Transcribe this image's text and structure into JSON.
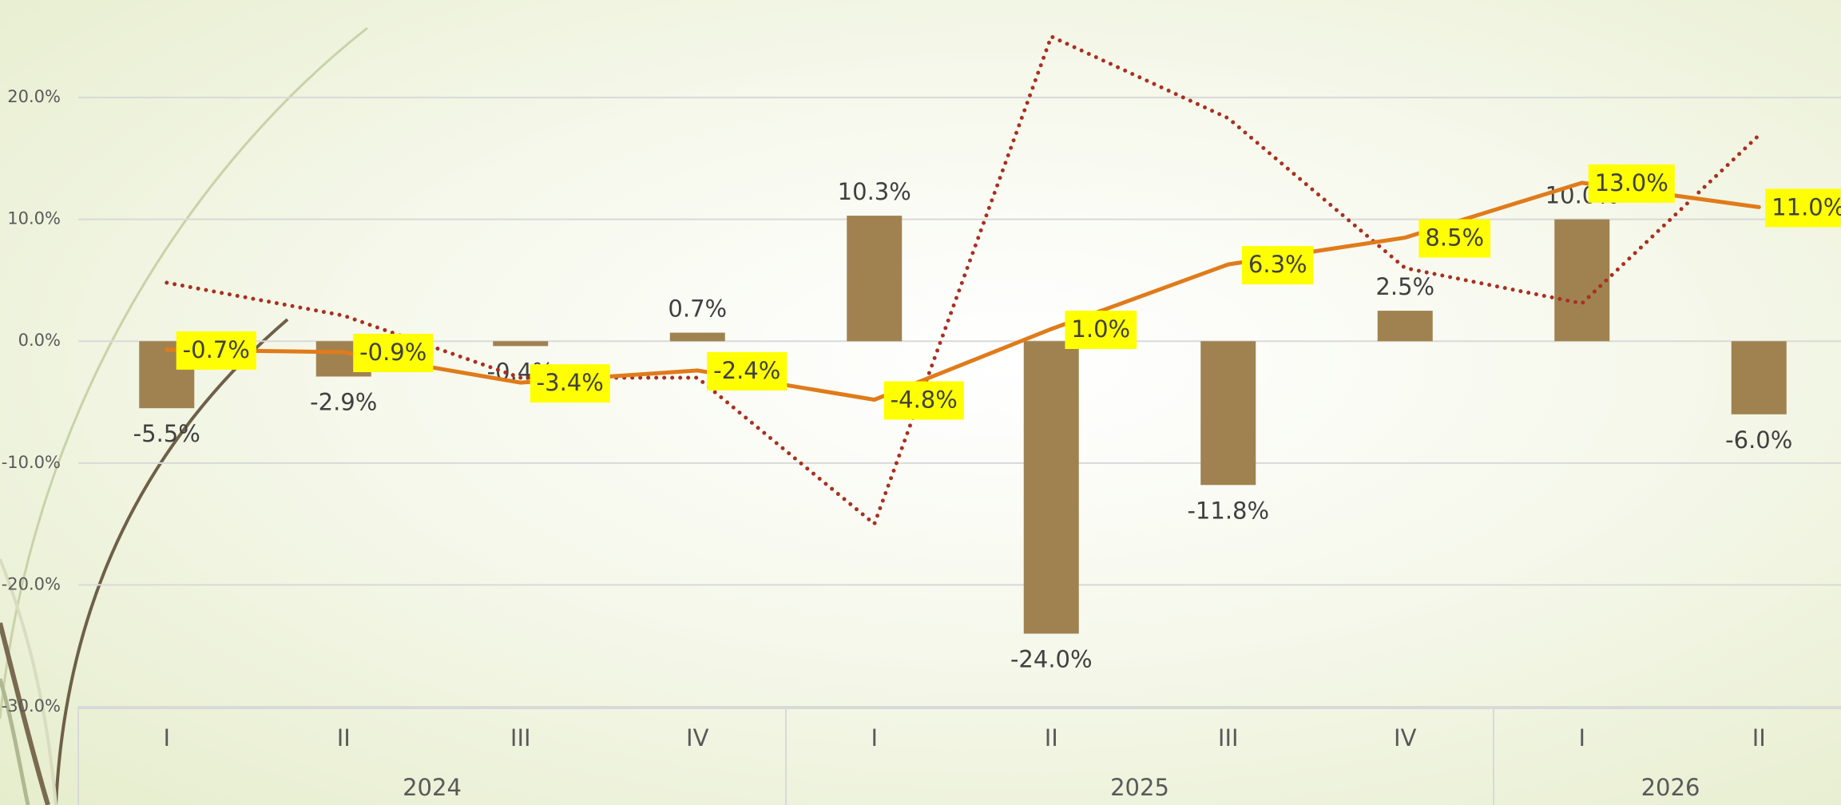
{
  "chart_data": {
    "type": "combo",
    "categories": [
      "I",
      "II",
      "III",
      "IV",
      "I",
      "II",
      "III",
      "IV",
      "I",
      "II"
    ],
    "groups": [
      {
        "label": "2024",
        "count": 4
      },
      {
        "label": "2025",
        "count": 4
      },
      {
        "label": "2026",
        "count": 2
      }
    ],
    "series": [
      {
        "type": "bar",
        "color": "#a08250",
        "values": [
          -5.5,
          -2.9,
          -0.4,
          0.7,
          10.3,
          -24.0,
          -11.8,
          2.5,
          10.0,
          -6.0
        ],
        "value_labels": [
          "-5.5%",
          "-2.9%",
          "-0.4%",
          "0.7%",
          "10.3%",
          "-24.0%",
          "-11.8%",
          "2.5%",
          "10.0%",
          "-6.0%"
        ]
      },
      {
        "type": "line",
        "color": "#e07b1a",
        "style": "solid",
        "label_background": "#ffff00",
        "values": [
          -0.7,
          -0.9,
          -3.4,
          -2.4,
          -4.8,
          1.0,
          6.3,
          8.5,
          13.0,
          11.0
        ],
        "value_labels": [
          "-0.7%",
          "-0.9%",
          "-3.4%",
          "-2.4%",
          "-4.8%",
          "1.0%",
          "6.3%",
          "8.5%",
          "13.0%",
          "11.0%"
        ]
      },
      {
        "type": "line",
        "color": "#a83020",
        "style": "dotted",
        "values": [
          4.8,
          2.1,
          -3.0,
          -3.0,
          -15.0,
          25.0,
          18.3,
          6.0,
          3.1,
          16.9
        ]
      }
    ],
    "ylim": [
      -30,
      28
    ],
    "yticks": [
      {
        "value": -30,
        "label": "-30.0%"
      },
      {
        "value": -20,
        "label": "-20.0%"
      },
      {
        "value": -10,
        "label": "-10.0%"
      },
      {
        "value": 0,
        "label": "0.0%"
      },
      {
        "value": 10,
        "label": "10.0%"
      },
      {
        "value": 20,
        "label": "20.0%"
      }
    ],
    "grid": true
  }
}
